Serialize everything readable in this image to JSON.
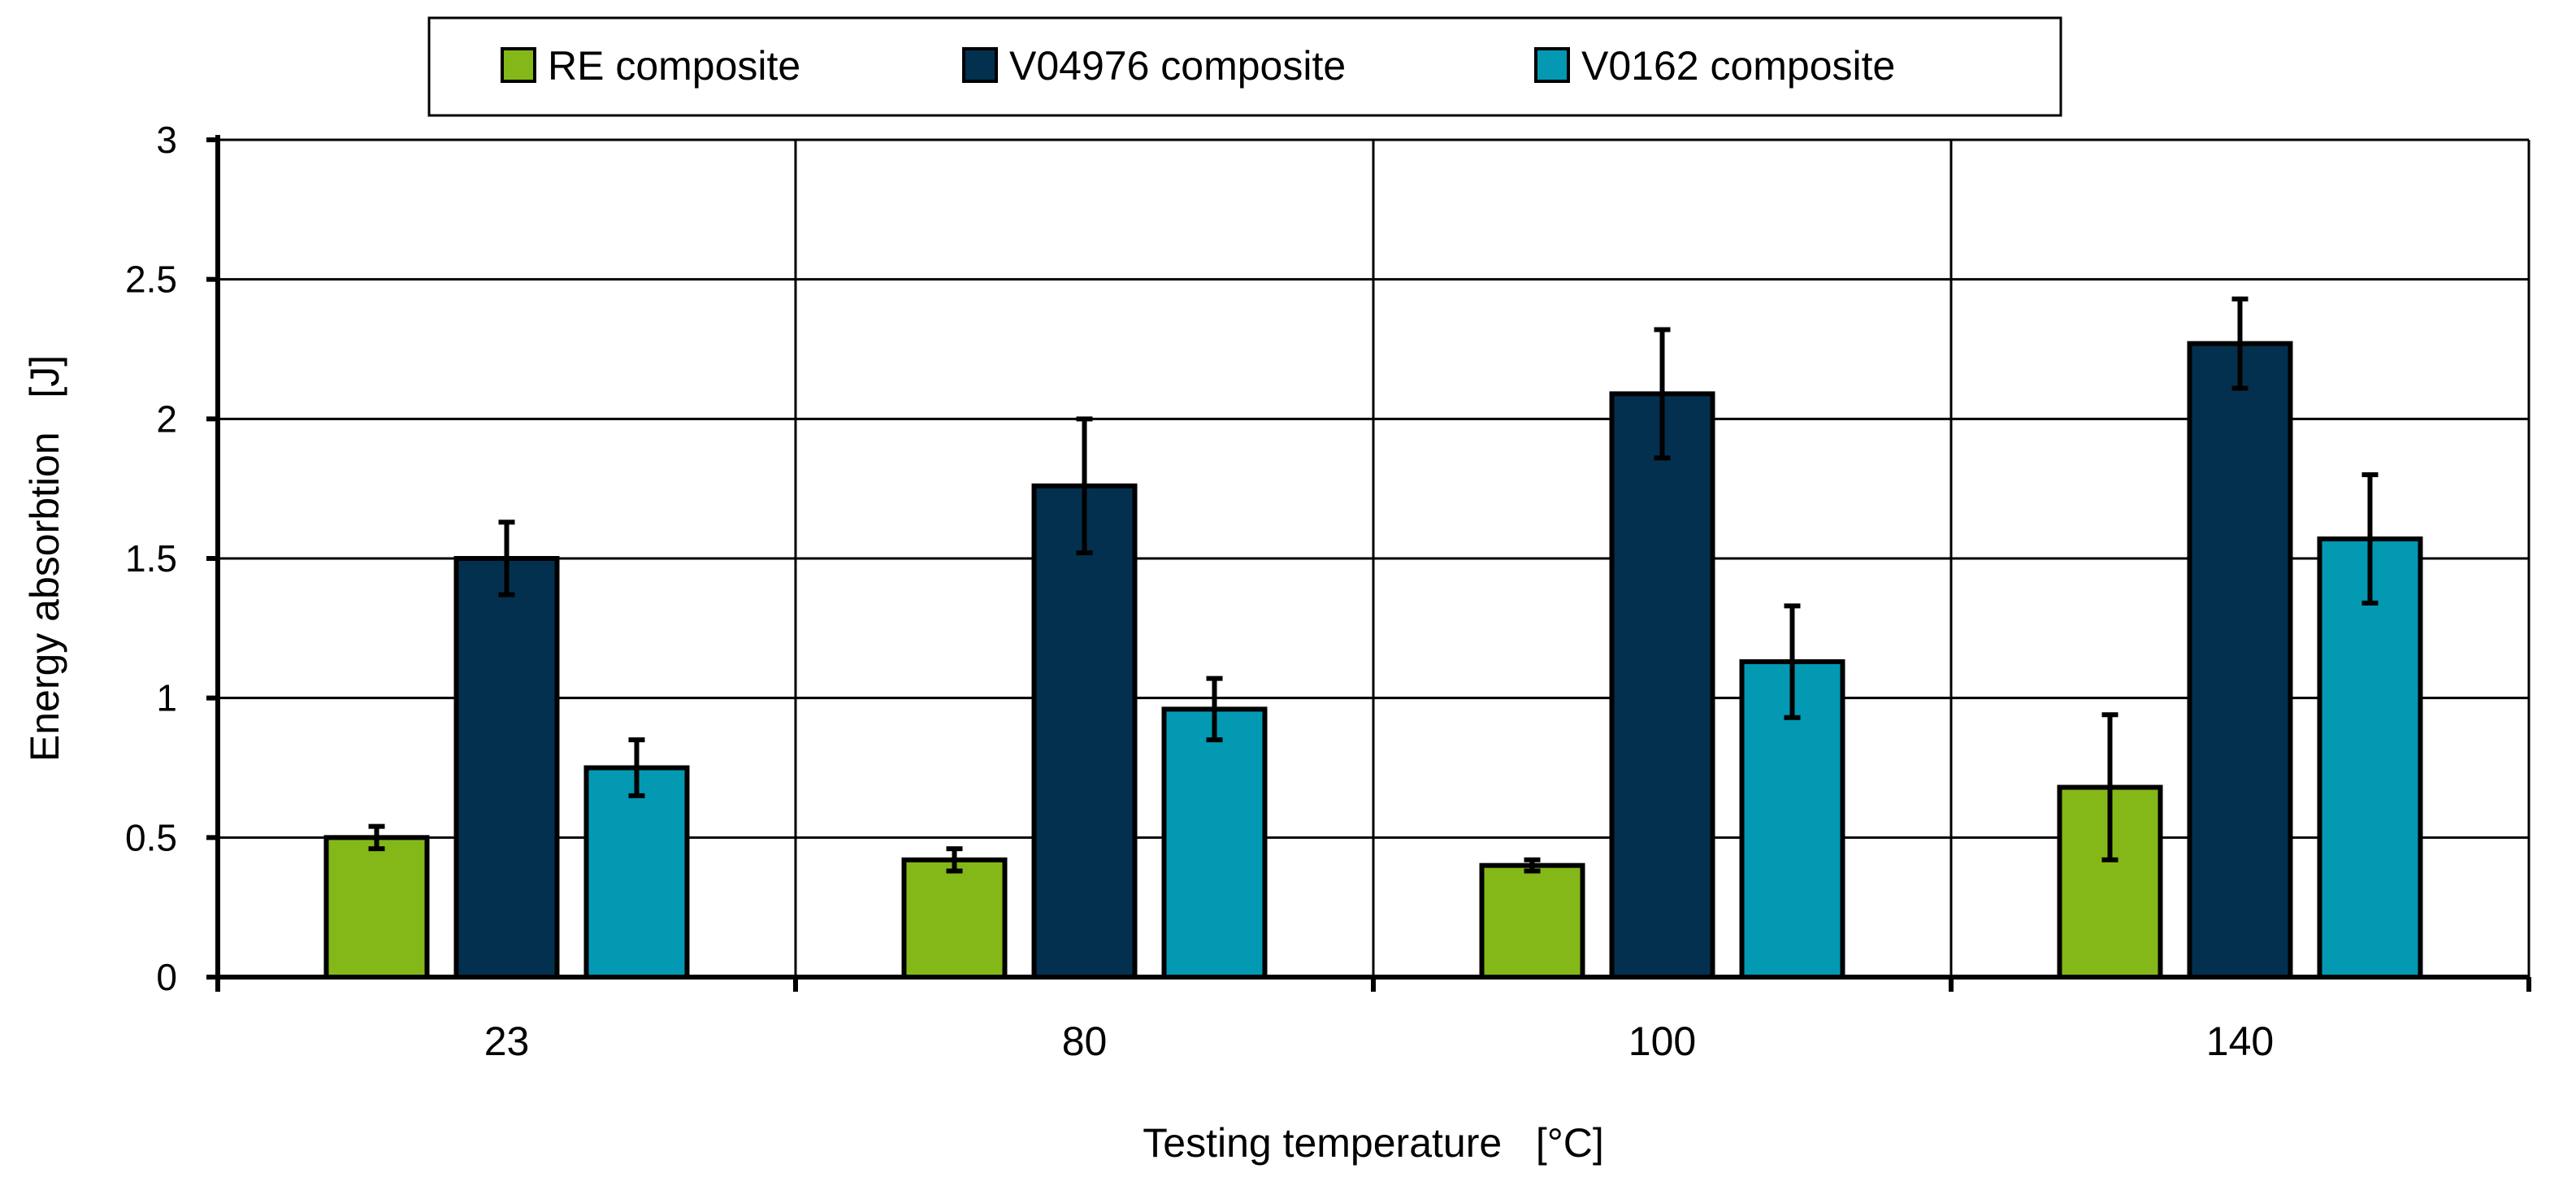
{
  "chart_data": {
    "type": "bar",
    "title": "",
    "xlabel": "Testing temperature   [°C]",
    "ylabel": "Energy absorbtion   [J]",
    "categories": [
      "23",
      "80",
      "100",
      "140"
    ],
    "ylim": [
      0,
      3
    ],
    "yticks": [
      0,
      0.5,
      1,
      1.5,
      2,
      2.5,
      3
    ],
    "ytick_labels": [
      "0",
      "0.5",
      "1",
      "1.5",
      "2",
      "2.5",
      "3"
    ],
    "grid": true,
    "legend_position": "top-center",
    "series": [
      {
        "name": "RE composite",
        "color": "#84b819",
        "values": [
          0.5,
          0.42,
          0.4,
          0.68
        ],
        "errors": [
          0.04,
          0.04,
          0.02,
          0.26
        ]
      },
      {
        "name": "V04976 composite",
        "color": "#03304e",
        "values": [
          1.5,
          1.76,
          2.09,
          2.27
        ],
        "errors": [
          0.13,
          0.24,
          0.23,
          0.16
        ]
      },
      {
        "name": "V0162 composite",
        "color": "#0399b3",
        "values": [
          0.75,
          0.96,
          1.13,
          1.57
        ],
        "errors": [
          0.1,
          0.11,
          0.2,
          0.23
        ]
      }
    ]
  }
}
